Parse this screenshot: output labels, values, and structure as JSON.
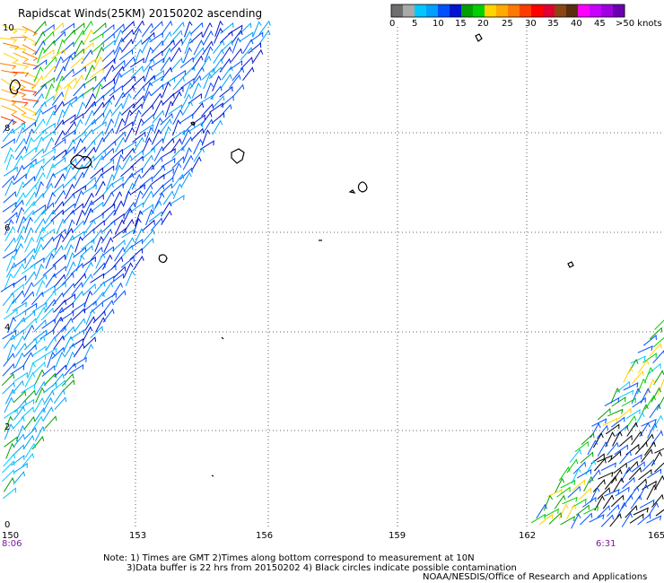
{
  "title": "Rapidscat Winds(25KM) 20150202 ascending",
  "legend": {
    "colors": [
      "#6e6e6e",
      "#a9a9a9",
      "#00c8ff",
      "#00a0ff",
      "#0050ff",
      "#0014d2",
      "#00a000",
      "#00d000",
      "#ffd200",
      "#ffaa00",
      "#ff7800",
      "#ff3c00",
      "#ff0000",
      "#e00030",
      "#8b4513",
      "#5a2d0c",
      "#ff00ff",
      "#c800ff",
      "#a000e0",
      "#6a00b0"
    ],
    "labels": [
      "0",
      "5",
      "10",
      "15",
      "20",
      "25",
      "30",
      "35",
      "40",
      "45",
      ">50 knots"
    ]
  },
  "axes": {
    "x_ticks": [
      "150",
      "153",
      "156",
      "159",
      "162",
      "165"
    ],
    "y_ticks": [
      "10",
      "8",
      "6",
      "4",
      "2",
      "0"
    ]
  },
  "times": {
    "left": "8:06",
    "right": "6:31"
  },
  "notes": {
    "line1": "Note: 1) Times are GMT 2)Times along bottom correspond to measurement at 10N",
    "line2": "3)Data buffer is 22 hrs from 20150202 4) Black circles indicate possible contamination",
    "credit": "NOAA/NESDIS/Office of Research and Applications"
  }
}
